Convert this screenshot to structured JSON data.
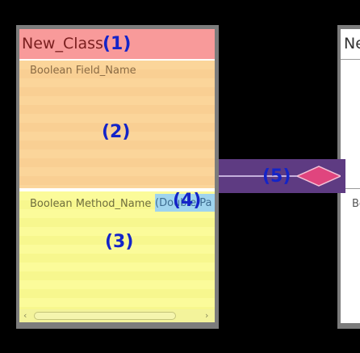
{
  "left_class": {
    "title": "New_Class",
    "field": "Boolean Field_Name",
    "method": "Boolean Method_Name",
    "parameter": "(Double Pa"
  },
  "right_class": {
    "title": "Ne",
    "method": "Bo"
  },
  "callouts": [
    "(1)",
    "(2)",
    "(3)",
    "(4)",
    "(5)"
  ],
  "scrollbar": {
    "left_arrow": "‹",
    "right_arrow": "›"
  },
  "colors": {
    "background": "#000000",
    "header": "#f89a9a",
    "fields": "#fbd59a",
    "methods": "#fbfb9a",
    "parameter": "#9fd4ee",
    "connector": "#5e3b82",
    "diamond": "#e0457e",
    "callout": "#1424c8"
  }
}
